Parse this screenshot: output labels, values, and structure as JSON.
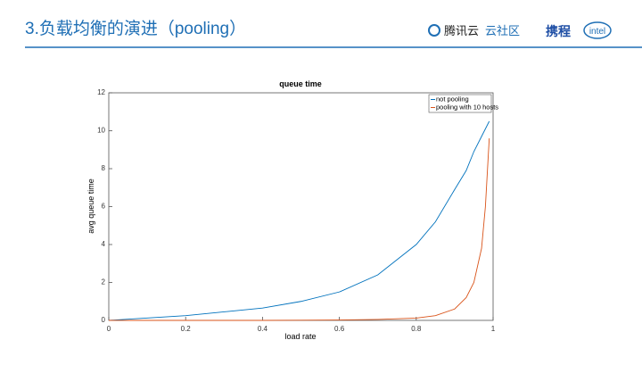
{
  "header": {
    "title": "3.负载均衡的演进（pooling）",
    "logos": [
      "腾讯云",
      "云社区",
      "携程",
      "intel"
    ]
  },
  "chart_data": {
    "type": "line",
    "title": "queue time",
    "x_label": "load rate",
    "y_label": "avg queue time",
    "x": [
      0,
      0.2,
      0.4,
      0.5,
      0.6,
      0.7,
      0.8,
      0.85,
      0.9,
      0.93,
      0.95,
      0.97,
      0.98,
      0.99
    ],
    "series": [
      {
        "name": "not pooling",
        "color": "#0072bd",
        "values": [
          0,
          0.25,
          0.65,
          1.0,
          1.5,
          2.4,
          4.0,
          5.2,
          6.9,
          7.9,
          8.9,
          9.7,
          10.1,
          10.5
        ]
      },
      {
        "name": "pooling with 10 hosts",
        "color": "#d95319",
        "values": [
          0,
          0,
          0,
          0.01,
          0.02,
          0.05,
          0.12,
          0.25,
          0.6,
          1.2,
          2.0,
          3.8,
          6.0,
          9.6
        ]
      }
    ],
    "xlim": [
      0,
      1
    ],
    "xticks": [
      0,
      0.2,
      0.4,
      0.6,
      0.8,
      1
    ],
    "ylim": [
      0,
      12
    ],
    "yticks": [
      0,
      2,
      4,
      6,
      8,
      10,
      12
    ],
    "legend": "upper-right"
  }
}
